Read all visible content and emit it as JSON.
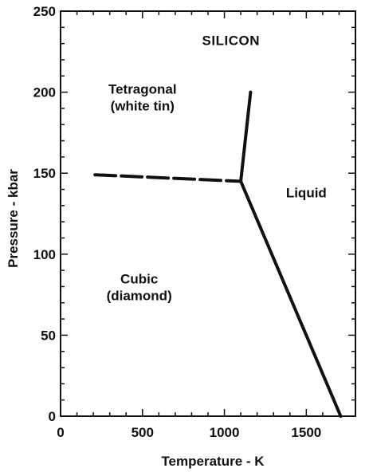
{
  "chart_data": {
    "type": "line",
    "title": "SILICON",
    "xlabel": "Temperature - K",
    "ylabel": "Pressure - kbar",
    "xlim": [
      0,
      1800
    ],
    "ylim": [
      0,
      250
    ],
    "xticks": [
      0,
      500,
      1000,
      1500
    ],
    "yticks": [
      0,
      50,
      100,
      150,
      200,
      250
    ],
    "grid": false,
    "series": [
      {
        "style": "dashed",
        "points": [
          [
            210,
            149
          ],
          [
            1100,
            145
          ]
        ]
      },
      {
        "style": "solid",
        "points": [
          [
            1100,
            145
          ],
          [
            1160,
            200
          ]
        ]
      },
      {
        "style": "solid",
        "points": [
          [
            1100,
            145
          ],
          [
            1710,
            0
          ]
        ]
      }
    ],
    "annotations": [
      {
        "lines": [
          "Tetragonal",
          "(white tin)"
        ],
        "x": 500,
        "y": 199
      },
      {
        "lines": [
          "Liquid"
        ],
        "x": 1500,
        "y": 135
      },
      {
        "lines": [
          "Cubic",
          "(diamond)"
        ],
        "x": 480,
        "y": 82
      }
    ],
    "colors": {
      "line": "#111111",
      "axis": "#111111"
    }
  }
}
